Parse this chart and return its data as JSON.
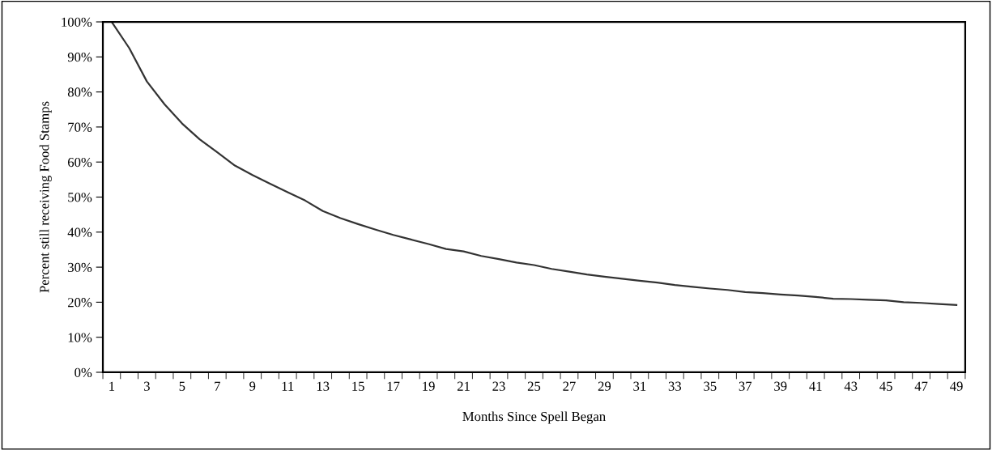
{
  "chart_data": {
    "type": "line",
    "xlabel": "Months Since Spell Began",
    "ylabel": "Percent still receiving Food Stamps",
    "categories": [
      "1",
      null,
      "3",
      null,
      "5",
      null,
      "7",
      null,
      "9",
      null,
      "11",
      null,
      "13",
      null,
      "15",
      null,
      "17",
      null,
      "19",
      null,
      "21",
      null,
      "23",
      null,
      "25",
      null,
      "27",
      null,
      "29",
      null,
      "31",
      null,
      "33",
      null,
      "35",
      null,
      "37",
      null,
      "39",
      null,
      "41",
      null,
      "43",
      null,
      "45",
      null,
      "47",
      null,
      "49"
    ],
    "series": [
      {
        "color": "#333333",
        "values": [
          100,
          92.5,
          83,
          76.5,
          71,
          66.5,
          62.8,
          59,
          56.3,
          53.8,
          51.4,
          49,
          46,
          44,
          42.3,
          40.7,
          39.2,
          37.9,
          36.6,
          35.2,
          34.5,
          33.2,
          32.3,
          31.3,
          30.6,
          29.5,
          28.7,
          27.9,
          27.3,
          26.7,
          26.1,
          25.6,
          24.9,
          24.4,
          23.9,
          23.5,
          22.9,
          22.6,
          22.2,
          21.9,
          21.5,
          21,
          20.9,
          20.7,
          20.5,
          20,
          19.8,
          19.5,
          19.2
        ]
      }
    ],
    "ylim": [
      0,
      100
    ],
    "yticks": [
      {
        "value": 0,
        "label": "0%"
      },
      {
        "value": 10,
        "label": "10%"
      },
      {
        "value": 20,
        "label": "20%"
      },
      {
        "value": 30,
        "label": "30%"
      },
      {
        "value": 40,
        "label": "40%"
      },
      {
        "value": 50,
        "label": "50%"
      },
      {
        "value": 60,
        "label": "60%"
      },
      {
        "value": 70,
        "label": "70%"
      },
      {
        "value": 80,
        "label": "80%"
      },
      {
        "value": 90,
        "label": "90%"
      },
      {
        "value": 100,
        "label": "100%"
      }
    ],
    "grid": false,
    "legend": false,
    "marker": "none",
    "line_style": "solid"
  }
}
